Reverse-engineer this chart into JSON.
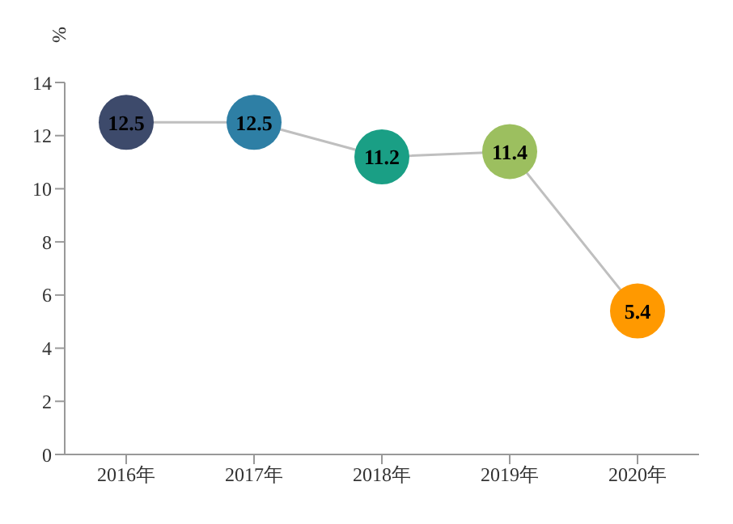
{
  "chart_data": {
    "type": "line",
    "ylabel": "%",
    "categories": [
      "2016年",
      "2017年",
      "2018年",
      "2019年",
      "2020年"
    ],
    "series": [
      {
        "color": "#bfbfbf",
        "colors": [
          "#3d4a6b",
          "#2e7fa5",
          "#1a9f85",
          "#9cbf5f",
          "#ff9900"
        ],
        "values": [
          12.5,
          12.5,
          11.2,
          11.4,
          5.4
        ]
      }
    ],
    "ylim": [
      0,
      14
    ],
    "yticks": [
      0,
      2,
      4,
      6,
      8,
      10,
      12,
      14
    ],
    "data_labels": true,
    "marker": "circle",
    "grid": false,
    "legend": false
  }
}
